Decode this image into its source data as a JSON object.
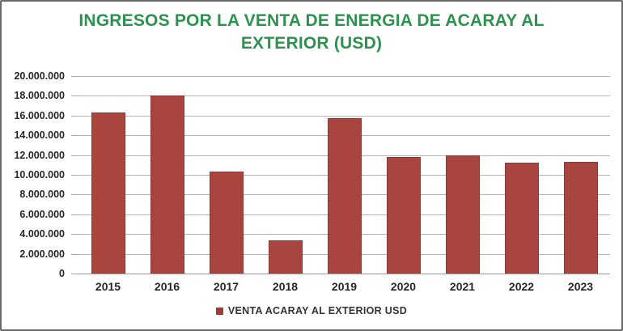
{
  "colors": {
    "title": "#2d9150",
    "bar_fill": "#a8453e",
    "bar_border": "#8f3833",
    "gridline": "#b3b3b3",
    "axis_line": "#9a9a9a",
    "text": "#262626",
    "frame_border": "#6a6a6a",
    "background": "#ffffff"
  },
  "chart_data": {
    "type": "bar",
    "title": "INGRESOS POR LA VENTA DE ENERGIA DE ACARAY AL EXTERIOR (USD)",
    "categories": [
      "2015",
      "2016",
      "2017",
      "2018",
      "2019",
      "2020",
      "2021",
      "2022",
      "2023"
    ],
    "series": [
      {
        "name": "VENTA ACARAY AL EXTERIOR USD",
        "color": "#a8453e",
        "values": [
          16300000,
          18000000,
          10300000,
          3400000,
          15700000,
          11800000,
          12000000,
          11200000,
          11300000
        ]
      }
    ],
    "xlabel": "",
    "ylabel": "",
    "ylim": [
      0,
      20000000
    ],
    "ytick_step": 2000000,
    "ytick_labels": [
      "20.000.000",
      "18.000.000",
      "16.000.000",
      "14.000.000",
      "12.000.000",
      "10.000.000",
      "8.000.000",
      "6.000.000",
      "4.000.000",
      "2.000.000",
      "0"
    ],
    "grid": true,
    "legend_position": "bottom"
  }
}
